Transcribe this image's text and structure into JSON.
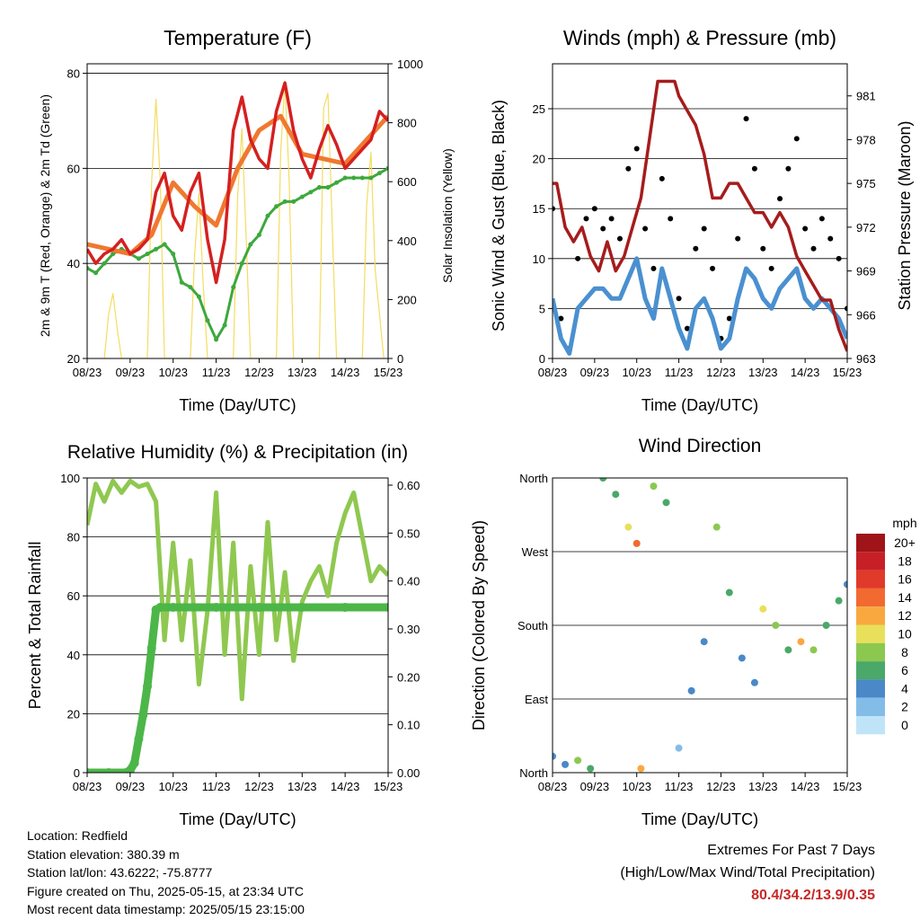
{
  "colors": {
    "temp2m": "#d42020",
    "temp9m": "#f07830",
    "dewpoint": "#3da83d",
    "solar": "#f5dc60",
    "gust": "#000000",
    "wind": "#4a90d0",
    "pressure": "#a61c1c",
    "rh": "#8fc850",
    "precip": "#4cb648",
    "extremes": "#c62828"
  },
  "x_ticks": [
    "08/23",
    "09/23",
    "10/23",
    "11/23",
    "12/23",
    "13/23",
    "14/23",
    "15/23"
  ],
  "speed_scale": {
    "title": "mph",
    "labels": [
      "20+",
      "18",
      "16",
      "14",
      "12",
      "10",
      "8",
      "6",
      "4",
      "2",
      "0"
    ],
    "colors": [
      "#9e1418",
      "#c62026",
      "#e03a2a",
      "#f26a30",
      "#f9a840",
      "#e8e05a",
      "#8cc850",
      "#4aa868",
      "#4a88c8",
      "#84bce8",
      "#bfe4f8"
    ]
  },
  "chart_data": [
    {
      "type": "line",
      "title": "Temperature (F)",
      "xlabel": "Time (Day/UTC)",
      "ylabel": "2m & 9m T (Red, Orange) & 2m Td (Green)",
      "ylabel_right": "Solar Insolation (Yellow)",
      "ylim": [
        20,
        82
      ],
      "yticks": [
        20,
        40,
        60,
        80
      ],
      "ylim_right": [
        0,
        1000
      ],
      "yticks_right": [
        0,
        200,
        400,
        600,
        800,
        1000
      ],
      "grid": true,
      "series": [
        {
          "name": "2m T",
          "x": [
            0,
            0.2,
            0.4,
            0.6,
            0.8,
            1.0,
            1.2,
            1.4,
            1.6,
            1.8,
            2.0,
            2.2,
            2.4,
            2.6,
            2.8,
            3.0,
            3.2,
            3.4,
            3.6,
            3.8,
            4.0,
            4.2,
            4.4,
            4.6,
            4.8,
            5.0,
            5.2,
            5.4,
            5.6,
            5.8,
            6.0,
            6.2,
            6.4,
            6.6,
            6.8,
            7.0
          ],
          "values": [
            43,
            40,
            42,
            43,
            45,
            42,
            43,
            45,
            55,
            59,
            50,
            47,
            55,
            59,
            45,
            36,
            45,
            68,
            75,
            66,
            62,
            60,
            72,
            78,
            68,
            62,
            58,
            64,
            69,
            65,
            60,
            62,
            64,
            66,
            72,
            70
          ]
        },
        {
          "name": "9m T",
          "x": [
            0,
            0.5,
            1.0,
            1.5,
            2.0,
            2.5,
            3.0,
            3.5,
            4.0,
            4.5,
            5.0,
            5.5,
            6.0,
            6.5,
            7.0
          ],
          "values": [
            44,
            43,
            42,
            46,
            57,
            52,
            48,
            60,
            68,
            71,
            63,
            62,
            61,
            66,
            71
          ]
        },
        {
          "name": "2m Td",
          "x": [
            0,
            0.2,
            0.4,
            0.6,
            0.8,
            1.0,
            1.2,
            1.4,
            1.6,
            1.8,
            2.0,
            2.2,
            2.4,
            2.6,
            2.8,
            3.0,
            3.2,
            3.4,
            3.6,
            3.8,
            4.0,
            4.2,
            4.4,
            4.6,
            4.8,
            5.0,
            5.2,
            5.4,
            5.6,
            5.8,
            6.0,
            6.2,
            6.4,
            6.6,
            6.8,
            7.0
          ],
          "values": [
            39,
            38,
            40,
            42,
            43,
            42,
            41,
            42,
            43,
            44,
            42,
            36,
            35,
            33,
            28,
            24,
            27,
            35,
            40,
            44,
            46,
            50,
            52,
            53,
            53,
            54,
            55,
            56,
            56,
            57,
            58,
            58,
            58,
            58,
            59,
            60
          ]
        },
        {
          "name": "Solar",
          "x": [
            0.4,
            0.5,
            0.6,
            0.7,
            0.8,
            1.4,
            1.5,
            1.6,
            1.7,
            1.8,
            2.4,
            2.5,
            2.6,
            2.7,
            2.8,
            3.4,
            3.5,
            3.6,
            3.7,
            3.8,
            4.4,
            4.5,
            4.6,
            4.7,
            4.8,
            5.4,
            5.5,
            5.6,
            5.7,
            5.8,
            6.4,
            6.5,
            6.6,
            6.7,
            6.8,
            6.9
          ],
          "values": [
            0,
            150,
            220,
            100,
            0,
            0,
            600,
            880,
            600,
            0,
            0,
            350,
            560,
            250,
            0,
            0,
            550,
            780,
            400,
            0,
            0,
            700,
            940,
            600,
            0,
            0,
            850,
            900,
            450,
            0,
            0,
            520,
            700,
            300,
            150,
            0
          ]
        }
      ]
    },
    {
      "type": "scatter",
      "title": "Winds (mph) & Pressure (mb)",
      "xlabel": "Time (Day/UTC)",
      "ylabel": "Sonic Wind & Gust (Blue, Black)",
      "ylabel_right": "Station Pressure (Maroon)",
      "ylim": [
        0,
        29.5
      ],
      "yticks": [
        0,
        5,
        10,
        15,
        20,
        25
      ],
      "ylim_right": [
        963,
        983.2
      ],
      "yticks_right": [
        963,
        966,
        969,
        972,
        975,
        978,
        981
      ],
      "grid": true,
      "series": [
        {
          "name": "Gust",
          "x": [
            0,
            0.2,
            0.4,
            0.6,
            0.8,
            1.0,
            1.2,
            1.4,
            1.6,
            1.8,
            2.0,
            2.2,
            2.4,
            2.6,
            2.8,
            3.0,
            3.2,
            3.4,
            3.6,
            3.8,
            4.0,
            4.2,
            4.4,
            4.6,
            4.8,
            5.0,
            5.2,
            5.4,
            5.6,
            5.8,
            6.0,
            6.2,
            6.4,
            6.6,
            6.8,
            7.0
          ],
          "values": [
            15,
            4,
            1,
            10,
            14,
            15,
            13,
            14,
            12,
            19,
            21,
            13,
            9,
            18,
            14,
            6,
            3,
            11,
            13,
            9,
            2,
            4,
            12,
            24,
            19,
            11,
            9,
            16,
            19,
            22,
            13,
            11,
            14,
            12,
            10,
            5
          ]
        },
        {
          "name": "Wind",
          "x": [
            0,
            0.2,
            0.4,
            0.6,
            0.8,
            1.0,
            1.2,
            1.4,
            1.6,
            1.8,
            2.0,
            2.2,
            2.4,
            2.6,
            2.8,
            3.0,
            3.2,
            3.4,
            3.6,
            3.8,
            4.0,
            4.2,
            4.4,
            4.6,
            4.8,
            5.0,
            5.2,
            5.4,
            5.6,
            5.8,
            6.0,
            6.2,
            6.4,
            6.6,
            6.8,
            7.0
          ],
          "values": [
            6,
            2,
            0.5,
            5,
            6,
            7,
            7,
            6,
            6,
            8,
            10,
            6,
            4,
            9,
            6,
            3,
            1,
            5,
            6,
            4,
            1,
            2,
            6,
            9,
            8,
            6,
            5,
            7,
            8,
            9,
            6,
            5,
            6,
            5,
            4,
            2
          ]
        },
        {
          "name": "Pressure",
          "x": [
            0,
            0.1,
            0.3,
            0.5,
            0.7,
            0.9,
            1.1,
            1.3,
            1.5,
            1.7,
            1.9,
            2.1,
            2.3,
            2.5,
            2.7,
            2.9,
            3.0,
            3.2,
            3.4,
            3.6,
            3.8,
            4.0,
            4.2,
            4.4,
            4.6,
            4.8,
            5.0,
            5.2,
            5.4,
            5.6,
            5.8,
            6.0,
            6.2,
            6.4,
            6.6,
            6.8,
            7.0
          ],
          "values": [
            975,
            975,
            972,
            971,
            972,
            970,
            969,
            971,
            969,
            970,
            972,
            974,
            978,
            982,
            982,
            982,
            981,
            980,
            979,
            977,
            974,
            974,
            975,
            975,
            974,
            973,
            973,
            972,
            973,
            972,
            970,
            969,
            968,
            967,
            967,
            965,
            963.5
          ]
        }
      ]
    },
    {
      "type": "line",
      "title": "Relative Humidity (%) & Precipitation (in)",
      "xlabel": "Time (Day/UTC)",
      "ylabel": "Percent & Total Rainfall",
      "ylim": [
        0,
        100
      ],
      "yticks": [
        0,
        20,
        40,
        60,
        80,
        100
      ],
      "ylim_right": [
        0,
        0.615
      ],
      "yticks_right": [
        "0.00",
        "0.10",
        "0.20",
        "0.30",
        "0.40",
        "0.50",
        "0.60"
      ],
      "grid": true,
      "series": [
        {
          "name": "RH",
          "x": [
            0,
            0.2,
            0.4,
            0.6,
            0.8,
            1.0,
            1.2,
            1.4,
            1.6,
            1.8,
            2.0,
            2.2,
            2.4,
            2.6,
            2.8,
            3.0,
            3.2,
            3.4,
            3.6,
            3.8,
            4.0,
            4.2,
            4.4,
            4.6,
            4.8,
            5.0,
            5.2,
            5.4,
            5.6,
            5.8,
            6.0,
            6.2,
            6.4,
            6.6,
            6.8,
            7.0
          ],
          "values": [
            84,
            98,
            92,
            99,
            95,
            99,
            97,
            98,
            92,
            45,
            78,
            45,
            72,
            30,
            55,
            95,
            40,
            78,
            25,
            70,
            40,
            85,
            45,
            68,
            38,
            58,
            65,
            70,
            60,
            78,
            88,
            95,
            80,
            65,
            70,
            67
          ]
        },
        {
          "name": "Precipitation",
          "x": [
            0,
            0.5,
            0.9,
            1.0,
            1.1,
            1.2,
            1.3,
            1.4,
            1.5,
            1.6,
            1.7,
            2.0,
            3.0,
            4.0,
            5.0,
            6.0,
            7.0
          ],
          "values": [
            0,
            0,
            0,
            0.005,
            0.02,
            0.07,
            0.12,
            0.18,
            0.26,
            0.34,
            0.345,
            0.345,
            0.345,
            0.345,
            0.345,
            0.345,
            0.345
          ]
        }
      ]
    },
    {
      "type": "scatter",
      "title": "Wind Direction",
      "xlabel": "Time (Day/UTC)",
      "ylabel": "Direction (Colored By Speed)",
      "ylim": [
        0,
        360
      ],
      "ytick_labels": [
        "North",
        "East",
        "South",
        "West",
        "North"
      ],
      "grid": true,
      "series": [
        {
          "name": "Direction",
          "x": [
            0,
            0.3,
            0.6,
            0.9,
            1.2,
            1.5,
            1.8,
            2.0,
            2.1,
            2.4,
            2.7,
            3.0,
            3.3,
            3.6,
            3.9,
            4.2,
            4.5,
            4.8,
            5.0,
            5.3,
            5.6,
            5.9,
            6.2,
            6.5,
            6.8,
            7.0
          ],
          "values": [
            20,
            10,
            15,
            5,
            360,
            340,
            300,
            280,
            5,
            350,
            330,
            30,
            100,
            160,
            300,
            220,
            140,
            110,
            200,
            180,
            150,
            160,
            150,
            180,
            210,
            230
          ],
          "speeds": [
            4,
            5,
            8,
            6,
            7,
            6,
            10,
            14,
            12,
            8,
            6,
            3,
            4,
            4,
            8,
            6,
            5,
            4,
            10,
            8,
            7,
            12,
            8,
            6,
            7,
            5
          ]
        }
      ]
    }
  ],
  "info": {
    "location": "Location: Redfield",
    "elevation": "Station elevation: 380.39 m",
    "latlon": "Station lat/lon: 43.6222; -75.8777",
    "created": "Figure created on Thu, 2025-05-15, at 23:34 UTC",
    "recent": "Most recent data timestamp: 2025/05/15 23:15:00"
  },
  "extremes": {
    "line1": "Extremes For Past 7 Days",
    "line2": "(High/Low/Max Wind/Total Precipitation)",
    "values": "80.4/34.2/13.9/0.35"
  }
}
